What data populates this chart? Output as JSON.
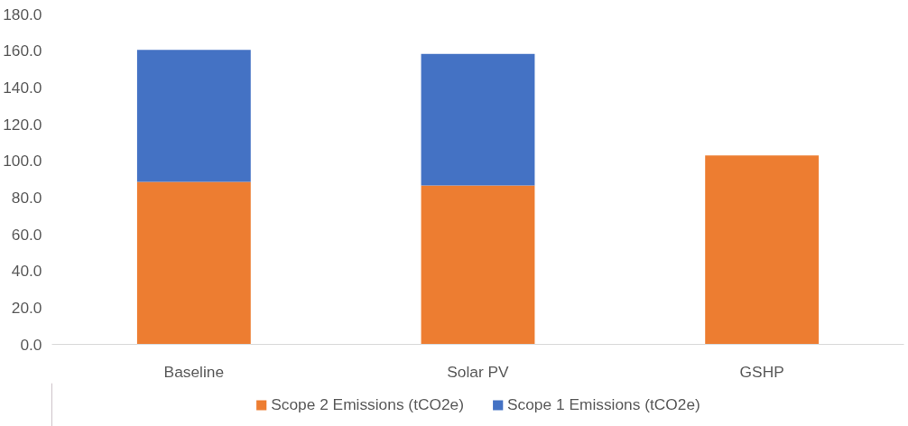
{
  "chart_data": {
    "type": "bar",
    "stacked": true,
    "categories": [
      "Baseline",
      "Solar PV",
      "GSHP"
    ],
    "series": [
      {
        "name": "Scope 2 Emissions (tCO2e)",
        "color": "#ed7d31",
        "values": [
          88.5,
          86.5,
          102.9
        ]
      },
      {
        "name": "Scope 1 Emissions (tCO2e)",
        "color": "#4472c4",
        "values": [
          72.0,
          71.7,
          null
        ]
      }
    ],
    "ylim": [
      0,
      180
    ],
    "yticks": [
      {
        "value": 0,
        "label": "0.0"
      },
      {
        "value": 20,
        "label": "20.0"
      },
      {
        "value": 40,
        "label": "40.0"
      },
      {
        "value": 60,
        "label": "60.0"
      },
      {
        "value": 80,
        "label": "80.0"
      },
      {
        "value": 100,
        "label": "100.0"
      },
      {
        "value": 120,
        "label": "120.0"
      },
      {
        "value": 140,
        "label": "140.0"
      },
      {
        "value": 160,
        "label": "160.0"
      },
      {
        "value": 180,
        "label": "180.0"
      }
    ],
    "grid": false,
    "legend": "bottom"
  }
}
